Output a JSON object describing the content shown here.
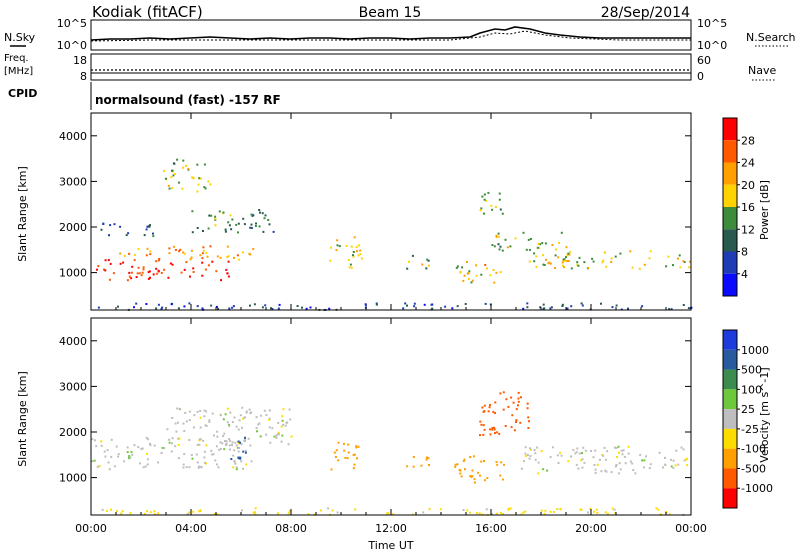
{
  "header": {
    "station": "Kodiak (fitACF)",
    "beam": "Beam 15",
    "date": "28/Sep/2014"
  },
  "noise_panel": {
    "left_label": "N.Sky",
    "right_label": "N.Search",
    "left_ticks": [
      "10^5",
      "10^0"
    ],
    "right_ticks": [
      "10^5",
      "10^0"
    ]
  },
  "freq_panel": {
    "left_label_line1": "Freq.",
    "left_label_line2": "[MHz]",
    "right_label": "Nave",
    "left_ticks": [
      "18",
      "8"
    ],
    "right_ticks": [
      "60",
      "0"
    ]
  },
  "cpid": {
    "label": "CPID",
    "text": "normalsound (fast) -157 RF"
  },
  "axes": {
    "xlabel": "Time UT",
    "ylabel": "Slant Range [km]",
    "x_ticks": [
      "00:00",
      "04:00",
      "08:00",
      "12:00",
      "16:00",
      "20:00",
      "00:00"
    ],
    "y_ticks": [
      "1000",
      "2000",
      "3000",
      "4000"
    ]
  },
  "colorbars": {
    "power": {
      "title": "Power [dB]",
      "ticks": [
        "28",
        "24",
        "20",
        "16",
        "12",
        "8",
        "4"
      ],
      "colors": [
        "#ff0000",
        "#ff5a00",
        "#ffa000",
        "#ffd200",
        "#3c8c3c",
        "#285a50",
        "#1e3cb4",
        "#0a0aff"
      ]
    },
    "velocity": {
      "title": "Velocity [m s^-1]",
      "ticks": [
        "1000",
        "500",
        "100",
        "25",
        "-25",
        "-100",
        "-500",
        "-1000"
      ],
      "colors": [
        "#1e3cdc",
        "#285aa0",
        "#3c8c50",
        "#6ec83c",
        "#bebebe",
        "#ffdc00",
        "#ffa000",
        "#ff5a00",
        "#ff0000"
      ]
    }
  },
  "chart_data": [
    {
      "type": "heatmap",
      "title": "Power [dB]",
      "xlabel": "Time UT",
      "ylabel": "Slant Range [km]",
      "xlim": [
        "00:00",
        "24:00"
      ],
      "ylim": [
        180,
        4500
      ],
      "clim": [
        0,
        30
      ],
      "regions": [
        {
          "t0": 0.2,
          "t1": 5.5,
          "r0": 850,
          "r1": 1300,
          "value": 27
        },
        {
          "t0": 1.0,
          "t1": 6.5,
          "r0": 1300,
          "r1": 1600,
          "value": 20
        },
        {
          "t0": 4.0,
          "t1": 7.5,
          "r0": 1900,
          "r1": 2400,
          "value": 10
        },
        {
          "t0": 0.3,
          "t1": 2.5,
          "r0": 1800,
          "r1": 2100,
          "value": 6
        },
        {
          "t0": 2.8,
          "t1": 4.8,
          "r0": 2800,
          "r1": 3500,
          "value": 14
        },
        {
          "t0": 9.5,
          "t1": 10.8,
          "r0": 1100,
          "r1": 1800,
          "value": 15
        },
        {
          "t0": 12.5,
          "t1": 13.5,
          "r0": 1100,
          "r1": 1400,
          "value": 14
        },
        {
          "t0": 14.5,
          "t1": 16.5,
          "r0": 800,
          "r1": 1300,
          "value": 18
        },
        {
          "t0": 15.5,
          "t1": 16.5,
          "r0": 2200,
          "r1": 2800,
          "value": 12
        },
        {
          "t0": 16.0,
          "t1": 19.0,
          "r0": 1500,
          "r1": 1900,
          "value": 14
        },
        {
          "t0": 17.5,
          "t1": 24.0,
          "r0": 1100,
          "r1": 1500,
          "value": 16
        },
        {
          "t0": 0.0,
          "t1": 24.0,
          "r0": 200,
          "r1": 350,
          "value": 5
        }
      ]
    },
    {
      "type": "heatmap",
      "title": "Velocity [m s^-1]",
      "xlabel": "Time UT",
      "ylabel": "Slant Range [km]",
      "xlim": [
        "00:00",
        "24:00"
      ],
      "ylim": [
        180,
        4500
      ],
      "clim": [
        -1000,
        1000
      ],
      "regions": [
        {
          "t0": 0.0,
          "t1": 6.5,
          "r0": 1200,
          "r1": 1900,
          "value": 0
        },
        {
          "t0": 3.0,
          "t1": 8.0,
          "r0": 1700,
          "r1": 2600,
          "value": 0
        },
        {
          "t0": 5.5,
          "t1": 6.3,
          "r0": 1400,
          "r1": 1900,
          "value": 800
        },
        {
          "t0": 9.5,
          "t1": 10.8,
          "r0": 1200,
          "r1": 1800,
          "value": -300
        },
        {
          "t0": 12.5,
          "t1": 13.5,
          "r0": 1200,
          "r1": 1500,
          "value": -200
        },
        {
          "t0": 14.5,
          "t1": 16.5,
          "r0": 900,
          "r1": 1500,
          "value": -400
        },
        {
          "t0": 15.5,
          "t1": 17.5,
          "r0": 1900,
          "r1": 2900,
          "value": -600
        },
        {
          "t0": 17.0,
          "t1": 24.0,
          "r0": 1100,
          "r1": 1700,
          "value": 0
        },
        {
          "t0": 0.0,
          "t1": 24.0,
          "r0": 200,
          "r1": 350,
          "value": -50
        }
      ]
    }
  ]
}
